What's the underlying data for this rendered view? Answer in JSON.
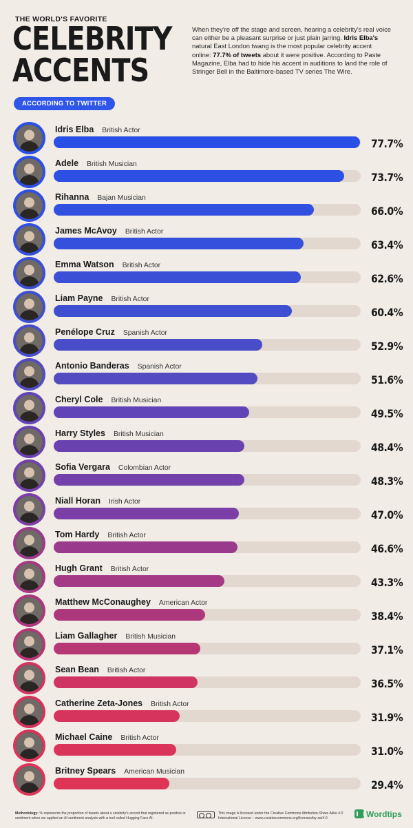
{
  "header": {
    "eyebrow": "THE WORLD'S FAVORITE",
    "title_line1": "CELEBRITY",
    "title_line2": "ACCENTS",
    "badge": "ACCORDING TO TWITTER",
    "intro_p1": "When they're off the stage and screen, hearing a celebrity's real voice can either be a pleasant surprise or just plain jarring.",
    "intro_bold1": "Idris Elba's",
    "intro_p2": "natural East London twang is the most popular celebrity accent online:",
    "intro_bold2": "77.7% of tweets",
    "intro_p3": "about it were positive. According to Paste Magazine, Elba had to hide his accent in auditions to land the role of Stringer Bell in the Baltimore-based TV series The Wire."
  },
  "chart_data": {
    "type": "bar",
    "orientation": "horizontal",
    "title": "CELEBRITY ACCENTS",
    "xlim": [
      0,
      100
    ],
    "unit": "%",
    "categories": [
      "Idris Elba",
      "Adele",
      "Rihanna",
      "James McAvoy",
      "Emma Watson",
      "Liam Payne",
      "Penélope Cruz",
      "Antonio Banderas",
      "Cheryl Cole",
      "Harry Styles",
      "Sofia Vergara",
      "Niall Horan",
      "Tom Hardy",
      "Hugh Grant",
      "Matthew McConaughey",
      "Liam Gallagher",
      "Sean Bean",
      "Catherine Zeta-Jones",
      "Michael Caine",
      "Britney Spears"
    ],
    "roles": [
      "British Actor",
      "British Musician",
      "Bajan Musician",
      "British Actor",
      "British Actor",
      "British Actor",
      "Spanish Actor",
      "Spanish Actor",
      "British Musician",
      "British Musician",
      "Colombian Actor",
      "Irish Actor",
      "British Actor",
      "British Actor",
      "American Actor",
      "British Musician",
      "British Actor",
      "British Actor",
      "British Actor",
      "American Musician"
    ],
    "values": [
      77.7,
      73.7,
      66.0,
      63.4,
      62.6,
      60.4,
      52.9,
      51.6,
      49.5,
      48.4,
      48.3,
      47.0,
      46.6,
      43.3,
      38.4,
      37.1,
      36.5,
      31.9,
      31.0,
      29.4
    ],
    "labels": [
      "77.7%",
      "73.7%",
      "66.0%",
      "63.4%",
      "62.6%",
      "60.4%",
      "52.9%",
      "51.6%",
      "49.5%",
      "48.4%",
      "48.3%",
      "47.0%",
      "46.6%",
      "43.3%",
      "38.4%",
      "37.1%",
      "36.5%",
      "31.9%",
      "31.0%",
      "29.4%"
    ],
    "colors": [
      "#2a4fe6",
      "#2d4fe3",
      "#3150e0",
      "#3450dc",
      "#3a4fd6",
      "#3f4fd1",
      "#4a4dc9",
      "#524bc2",
      "#6145b8",
      "#6a42b0",
      "#7341ac",
      "#7c3fa8",
      "#9a3a8c",
      "#a43986",
      "#ad377c",
      "#b73775",
      "#cf3462",
      "#d6345c",
      "#da345a",
      "#de3457"
    ],
    "track_color": "#e2d8d0"
  },
  "footer": {
    "method_bold": "Methodology:",
    "method_text": "% represents the proportion of tweets about a celebrity's accent that registered as positive in sentiment when we applied an AI sentiment analysis with a tool called Hugging Face AI.",
    "license_text": "This image is licensed under the Creative Commons Attribution-Share Alike 4.0 International License – www.creativecommons.org/licenses/by-sa/4.0",
    "brand": "Wordtips"
  }
}
